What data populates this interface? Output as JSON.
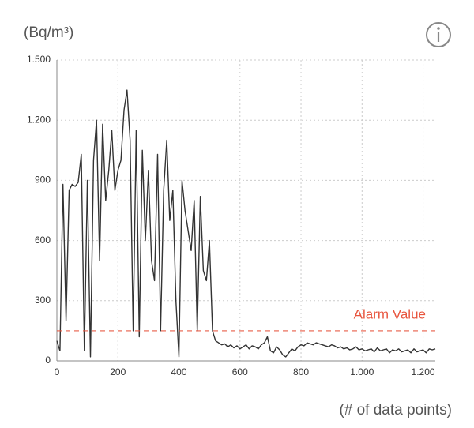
{
  "chart_data": {
    "type": "line",
    "y_unit_label": "(Bq/m³)",
    "x_axis_label": "(# of data points)",
    "x": [
      0,
      10,
      20,
      30,
      40,
      50,
      60,
      70,
      80,
      90,
      100,
      110,
      120,
      130,
      140,
      150,
      160,
      170,
      180,
      190,
      200,
      210,
      220,
      230,
      240,
      250,
      260,
      270,
      280,
      290,
      300,
      310,
      320,
      330,
      340,
      350,
      360,
      370,
      380,
      390,
      400,
      410,
      420,
      430,
      440,
      450,
      460,
      470,
      480,
      490,
      500,
      510,
      520,
      530,
      540,
      550,
      560,
      570,
      580,
      590,
      600,
      610,
      620,
      630,
      640,
      650,
      660,
      670,
      680,
      690,
      700,
      710,
      720,
      730,
      740,
      750,
      760,
      770,
      780,
      790,
      800,
      810,
      820,
      830,
      840,
      850,
      860,
      870,
      880,
      890,
      900,
      910,
      920,
      930,
      940,
      950,
      960,
      970,
      980,
      990,
      1000,
      1010,
      1020,
      1030,
      1040,
      1050,
      1060,
      1070,
      1080,
      1090,
      1100,
      1110,
      1120,
      1130,
      1140,
      1150,
      1160,
      1170,
      1180,
      1190,
      1200,
      1210,
      1220,
      1230,
      1240
    ],
    "series": [
      {
        "color": "#333333",
        "values": [
          100,
          50,
          880,
          200,
          850,
          880,
          870,
          890,
          1030,
          50,
          900,
          20,
          1000,
          1200,
          500,
          1180,
          800,
          950,
          1150,
          850,
          950,
          1000,
          1250,
          1350,
          1100,
          150,
          1150,
          120,
          1050,
          600,
          950,
          500,
          400,
          1030,
          150,
          850,
          1100,
          700,
          850,
          300,
          20,
          900,
          750,
          650,
          550,
          800,
          150,
          820,
          450,
          400,
          600,
          150,
          100,
          90,
          80,
          85,
          70,
          80,
          65,
          75,
          60,
          70,
          80,
          60,
          75,
          70,
          60,
          80,
          90,
          120,
          50,
          40,
          70,
          55,
          30,
          20,
          40,
          60,
          50,
          70,
          80,
          75,
          90,
          85,
          80,
          90,
          85,
          80,
          75,
          70,
          80,
          75,
          65,
          70,
          60,
          65,
          55,
          60,
          70,
          55,
          60,
          50,
          55,
          60,
          45,
          65,
          50,
          55,
          60,
          40,
          55,
          50,
          60,
          45,
          50,
          55,
          40,
          60,
          45,
          50,
          55,
          40,
          60,
          55,
          60
        ]
      }
    ],
    "alarm": {
      "label": "Alarm Value",
      "value": 150,
      "color": "#e8553e"
    },
    "xlim": [
      0,
      1240
    ],
    "ylim": [
      0,
      1500
    ],
    "xticks": [
      0,
      200,
      400,
      600,
      800,
      {
        "value": 1000,
        "label": "1.000"
      },
      {
        "value": 1200,
        "label": "1.200"
      }
    ],
    "yticks": [
      0,
      300,
      600,
      900,
      {
        "value": 1200,
        "label": "1.200"
      },
      {
        "value": 1500,
        "label": "1.500"
      }
    ],
    "grid": true
  }
}
